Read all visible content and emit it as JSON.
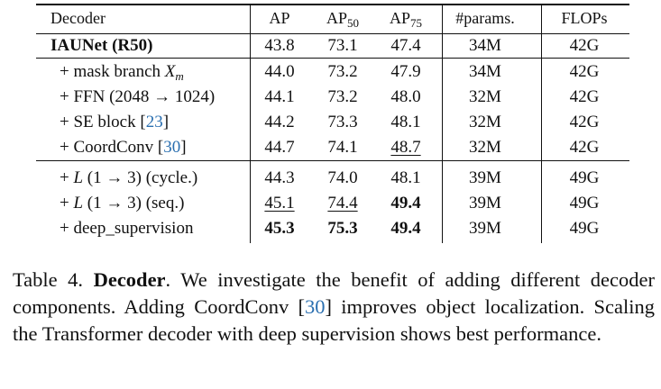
{
  "table": {
    "columns": [
      "Decoder",
      "AP",
      "AP",
      "AP",
      "#params.",
      "FLOPs"
    ],
    "ap_subscripts": [
      "50",
      "75"
    ],
    "baseline": {
      "name": "IAUNet (R50)",
      "ap": "43.8",
      "ap50": "73.1",
      "ap75": "47.4",
      "params": "34M",
      "flops": "42G"
    },
    "group1": [
      {
        "prefix": "+ mask branch ",
        "math": "X",
        "math_sub": "m",
        "ap": "44.0",
        "ap50": "73.2",
        "ap75": "47.9",
        "params": "34M",
        "flops": "42G"
      },
      {
        "name": "+ FFN (2048 → 1024)",
        "ap": "44.1",
        "ap50": "73.2",
        "ap75": "48.0",
        "params": "32M",
        "flops": "42G"
      },
      {
        "name": "+ SE block [",
        "cite": "23",
        "close": "]",
        "ap": "44.2",
        "ap50": "73.3",
        "ap75": "48.1",
        "params": "32M",
        "flops": "42G"
      },
      {
        "name": "+ CoordConv [",
        "cite": "30",
        "close": "]",
        "ap": "44.7",
        "ap50": "74.1",
        "ap75": "48.7",
        "params": "32M",
        "flops": "42G"
      }
    ],
    "group2": [
      {
        "prefix": "+ ",
        "math": "L",
        "suffix": " (1 → 3) (cycle.)",
        "ap": "44.3",
        "ap50": "74.0",
        "ap75": "48.1",
        "params": "39M",
        "flops": "49G"
      },
      {
        "prefix": "+ ",
        "math": "L",
        "suffix": " (1 → 3) (seq.)",
        "ap": "45.1",
        "ap50": "74.4",
        "ap75": "49.4",
        "params": "39M",
        "flops": "49G"
      },
      {
        "name": "+ deep_supervision",
        "ap": "45.3",
        "ap50": "75.3",
        "ap75": "49.4",
        "params": "39M",
        "flops": "49G"
      }
    ]
  },
  "caption": {
    "label": "Table 4.",
    "title": "Decoder",
    "text1": ". We investigate the benefit of adding different decoder components. Adding CoordConv [",
    "cite": "30",
    "text2": "] improves object localization. Scaling the Transformer decoder with deep supervision shows best performance."
  }
}
